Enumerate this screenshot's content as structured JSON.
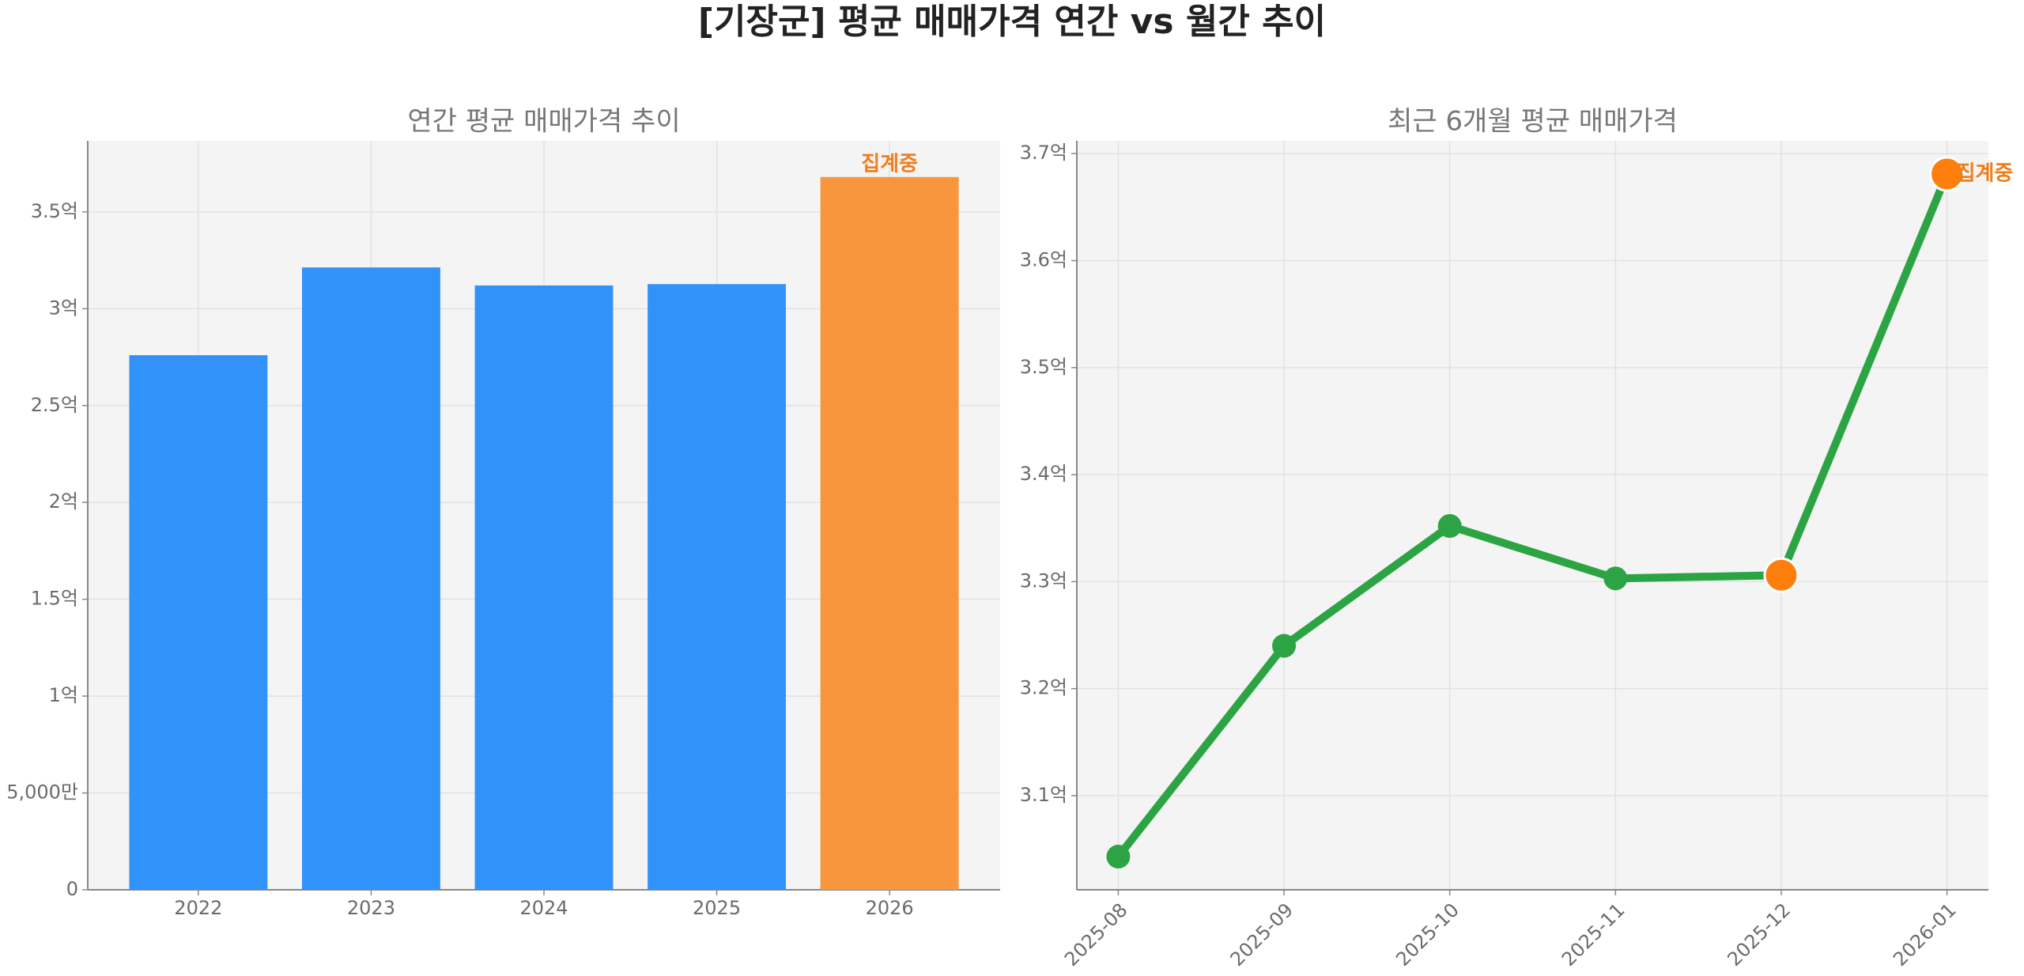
{
  "title": "[기장군] 평균 매매가격 연간 vs 월간 추이",
  "chart_data": [
    {
      "type": "bar",
      "title": "연간 평균 매매가격 추이",
      "categories": [
        "2022",
        "2023",
        "2024",
        "2025",
        "2026"
      ],
      "values": [
        2.76,
        3.213,
        3.12,
        3.127,
        3.68
      ],
      "colors": [
        "#3192fa",
        "#3192fa",
        "#3192fa",
        "#3192fa",
        "#f7963d"
      ],
      "ylim": [
        0,
        3.867
      ],
      "yticks": [
        0,
        {
          "value": 0.5,
          "label": "5,000만"
        },
        {
          "value": 1,
          "label": "1억"
        },
        {
          "value": 1.5,
          "label": "1.5억"
        },
        {
          "value": 2,
          "label": "2억"
        },
        {
          "value": 2.5,
          "label": "2.5억"
        },
        {
          "value": 3,
          "label": "3억"
        },
        {
          "value": 3.5,
          "label": "3.5억"
        }
      ],
      "grid": true,
      "annotations": [
        {
          "text": "집계중",
          "x": "2026",
          "color": "#f07d1a"
        }
      ]
    },
    {
      "type": "line",
      "title": "최근 6개월 평균 매매가격",
      "categories": [
        "2025-08",
        "2025-09",
        "2025-10",
        "2025-11",
        "2025-12",
        "2026-01"
      ],
      "values": [
        3.043,
        3.24,
        3.352,
        3.303,
        3.306,
        3.681
      ],
      "color": "#2ca444",
      "marker_colors": [
        "#2ca444",
        "#2ca444",
        "#2ca444",
        "#2ca444",
        "#ff7f0e",
        "#ff7f0e"
      ],
      "ylim": [
        3.012,
        3.712
      ],
      "yticks": [
        {
          "value": 3.1,
          "label": "3.1억"
        },
        {
          "value": 3.2,
          "label": "3.2억"
        },
        {
          "value": 3.3,
          "label": "3.3억"
        },
        {
          "value": 3.4,
          "label": "3.4억"
        },
        {
          "value": 3.5,
          "label": "3.5억"
        },
        {
          "value": 3.6,
          "label": "3.6억"
        },
        {
          "value": 3.7,
          "label": "3.7억"
        }
      ],
      "grid": true,
      "annotations": [
        {
          "text": "집계중",
          "x": "2026-01",
          "color": "#f07d1a"
        }
      ]
    }
  ]
}
